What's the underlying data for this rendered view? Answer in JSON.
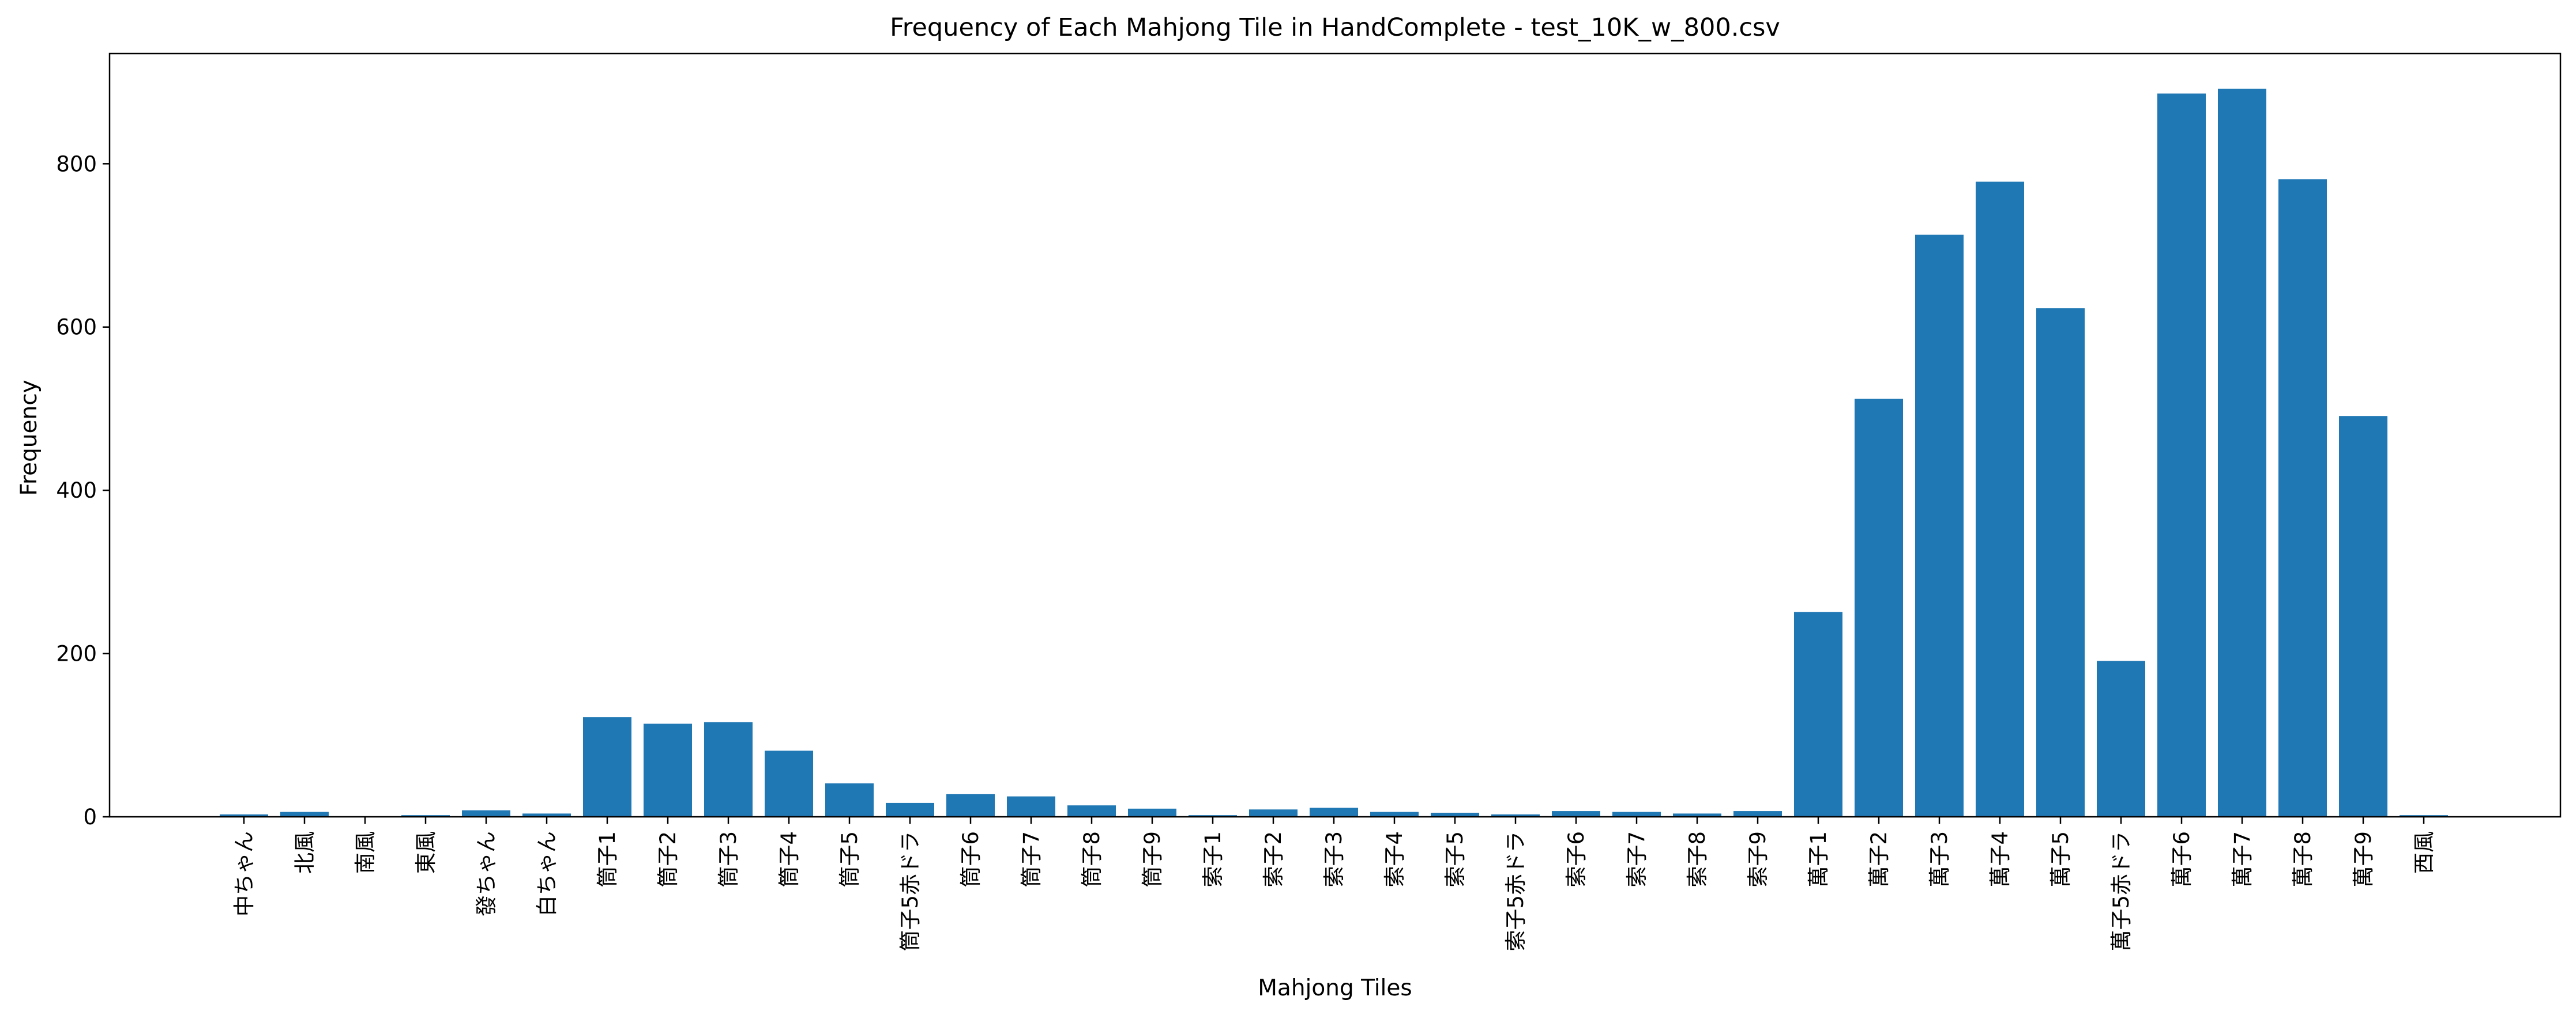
{
  "chart_data": {
    "type": "bar",
    "title": "Frequency of Each Mahjong Tile in HandComplete - test_10K_w_800.csv",
    "xlabel": "Mahjong Tiles",
    "ylabel": "Frequency",
    "ylim": [
      0,
      935
    ],
    "yticks": [
      0,
      200,
      400,
      600,
      800
    ],
    "grid": false,
    "bar_color": "#1f77b4",
    "categories": [
      "中ちゃん",
      "北風",
      "南風",
      "東風",
      "發ちゃん",
      "白ちゃん",
      "筒子1",
      "筒子2",
      "筒子3",
      "筒子4",
      "筒子5",
      "筒子5赤ドラ",
      "筒子6",
      "筒子7",
      "筒子8",
      "筒子9",
      "索子1",
      "索子2",
      "索子3",
      "索子4",
      "索子5",
      "索子5赤ドラ",
      "索子6",
      "索子7",
      "索子8",
      "索子9",
      "萬子1",
      "萬子2",
      "萬子3",
      "萬子4",
      "萬子5",
      "萬子5赤ドラ",
      "萬子6",
      "萬子7",
      "萬子8",
      "萬子9",
      "西風"
    ],
    "values": [
      3,
      6,
      0,
      2,
      8,
      4,
      122,
      114,
      116,
      81,
      41,
      17,
      28,
      25,
      14,
      10,
      2,
      9,
      11,
      6,
      5,
      3,
      7,
      6,
      4,
      7,
      251,
      512,
      713,
      778,
      623,
      191,
      886,
      892,
      781,
      491,
      2
    ]
  }
}
